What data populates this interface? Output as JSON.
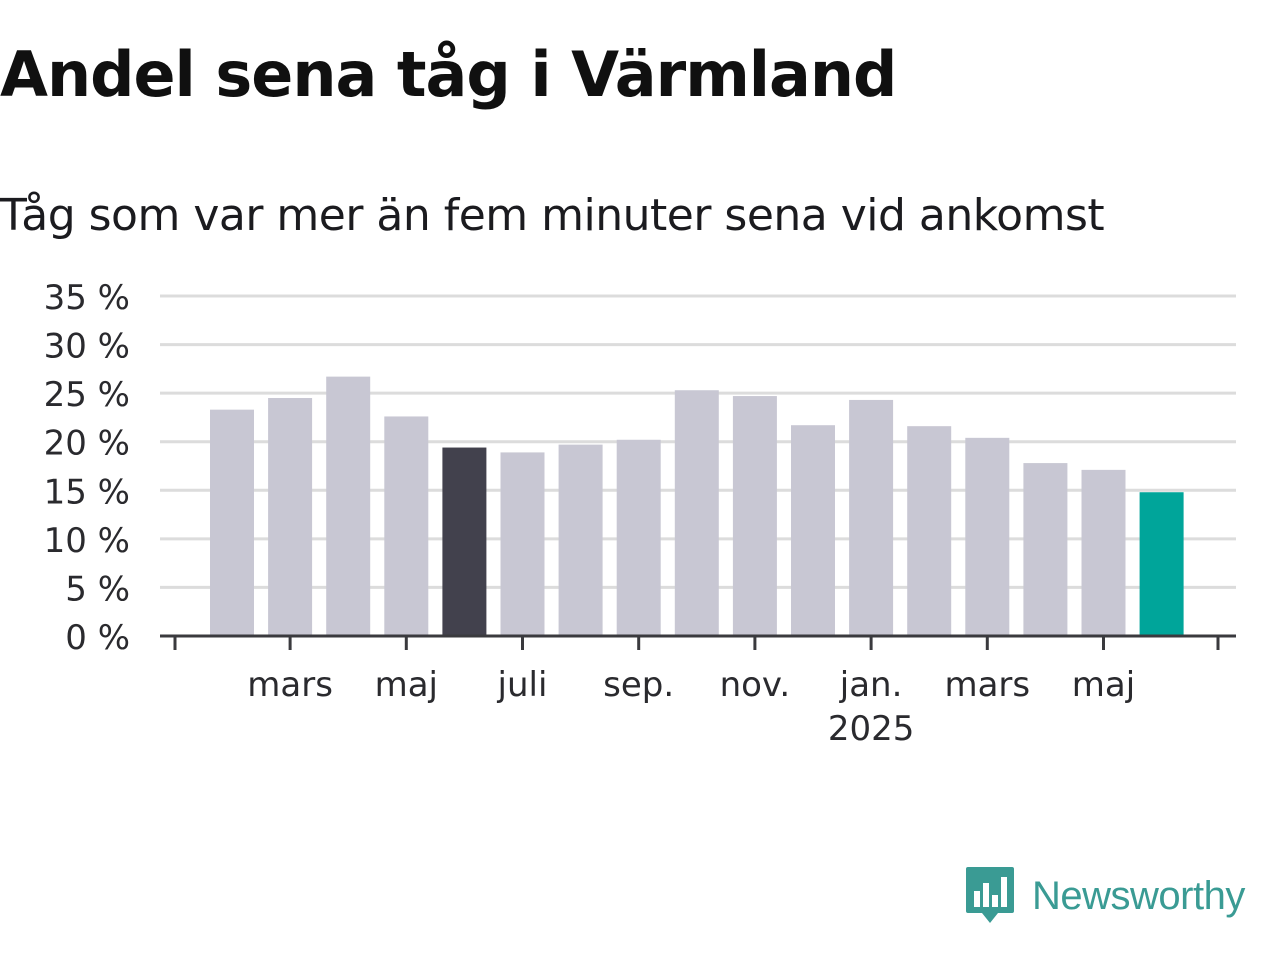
{
  "title": "Andel sena tåg i Värmland",
  "subtitle": "Tåg som var mer än fem minuter sena vid ankomst",
  "brand": {
    "name": "Newsworthy",
    "icon": "newsworthy-logo-icon",
    "color": "#3a9b94"
  },
  "chart_data": {
    "type": "bar",
    "months": [
      "2024-02",
      "2024-03",
      "2024-04",
      "2024-05",
      "2024-06",
      "2024-07",
      "2024-08",
      "2024-09",
      "2024-10",
      "2024-11",
      "2024-12",
      "2025-01",
      "2025-02",
      "2025-03",
      "2025-04",
      "2025-05",
      "2025-06"
    ],
    "values": [
      23.3,
      24.5,
      26.7,
      22.6,
      19.4,
      18.9,
      19.7,
      20.2,
      25.3,
      24.7,
      21.7,
      24.3,
      21.6,
      20.4,
      17.8,
      17.1,
      14.8
    ],
    "bar_colors": [
      "#c8c7d3",
      "#c8c7d3",
      "#c8c7d3",
      "#c8c7d3",
      "#42414d",
      "#c8c7d3",
      "#c8c7d3",
      "#c8c7d3",
      "#c8c7d3",
      "#c8c7d3",
      "#c8c7d3",
      "#c8c7d3",
      "#c8c7d3",
      "#c8c7d3",
      "#c8c7d3",
      "#c8c7d3",
      "#00a59a"
    ],
    "y_ticks": [
      0,
      5,
      10,
      15,
      20,
      25,
      30,
      35
    ],
    "y_tick_labels": [
      "0 %",
      "5 %",
      "10 %",
      "15 %",
      "20 %",
      "25 %",
      "30 %",
      "35 %"
    ],
    "ylim": [
      0,
      35
    ],
    "x_ticks": [
      {
        "month_index": 1,
        "label": "mars",
        "sublabel": ""
      },
      {
        "month_index": 3,
        "label": "maj",
        "sublabel": ""
      },
      {
        "month_index": 5,
        "label": "juli",
        "sublabel": ""
      },
      {
        "month_index": 7,
        "label": "sep.",
        "sublabel": ""
      },
      {
        "month_index": 9,
        "label": "nov.",
        "sublabel": ""
      },
      {
        "month_index": 11,
        "label": "jan.",
        "sublabel": "2025"
      },
      {
        "month_index": 13,
        "label": "mars",
        "sublabel": ""
      },
      {
        "month_index": 15,
        "label": "maj",
        "sublabel": ""
      }
    ],
    "grid": true,
    "legend": "none"
  }
}
